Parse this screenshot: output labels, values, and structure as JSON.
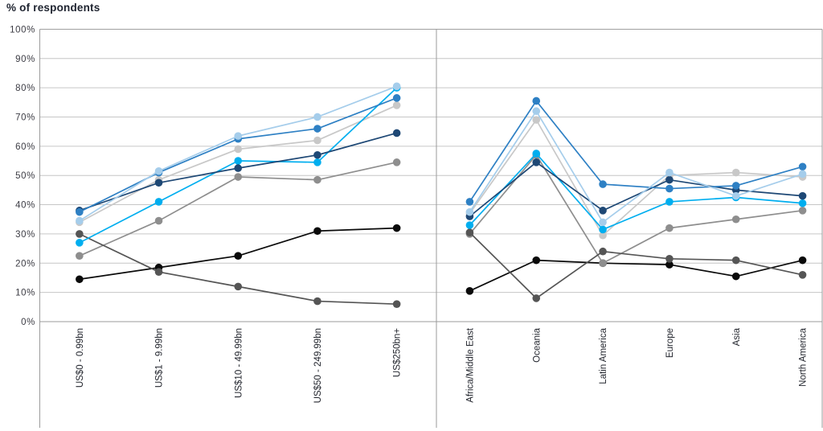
{
  "chart_data": {
    "type": "line",
    "title": "% of respondents",
    "ylabel": "% of respondents",
    "ylim": [
      0,
      100
    ],
    "ytick_step": 10,
    "yticks": [
      "0%",
      "10%",
      "20%",
      "30%",
      "40%",
      "50%",
      "60%",
      "70%",
      "80%",
      "90%",
      "100%"
    ],
    "grid": true,
    "legend_position": "none",
    "panels": [
      {
        "name": "by-fund-size",
        "categories": [
          "US$0 - 0.99bn",
          "US$1 - 9.99bn",
          "US$10 - 49.99bn",
          "US$50 - 249.99bn",
          "US$250bn+"
        ],
        "series": [
          {
            "name": "black",
            "color": "#0a0a0a",
            "values": [
              14.5,
              18.5,
              22.5,
              31,
              32
            ]
          },
          {
            "name": "medium-gray",
            "color": "#8e8e8e",
            "values": [
              22.5,
              34.5,
              49.5,
              48.5,
              54.5
            ]
          },
          {
            "name": "dark-gray",
            "color": "#555555",
            "values": [
              30,
              17,
              12,
              7,
              6
            ]
          },
          {
            "name": "light-gray",
            "color": "#c8c8c8",
            "values": [
              34,
              48.5,
              59,
              62,
              74
            ]
          },
          {
            "name": "cyan",
            "color": "#00aeef",
            "values": [
              27,
              41,
              55,
              54.5,
              80
            ]
          },
          {
            "name": "dark-navy",
            "color": "#1e4875",
            "values": [
              38,
              47.5,
              52.5,
              57,
              64.5
            ]
          },
          {
            "name": "bright-blue",
            "color": "#2e80c4",
            "values": [
              37.5,
              51,
              62.5,
              66,
              76.5
            ]
          },
          {
            "name": "pale-blue",
            "color": "#a5cdeb",
            "values": [
              34.5,
              51.5,
              63.5,
              70,
              80.5
            ]
          }
        ]
      },
      {
        "name": "by-region",
        "categories": [
          "Africa/Middle East",
          "Oceania",
          "Latin America",
          "Europe",
          "Asia",
          "North America"
        ],
        "series": [
          {
            "name": "black",
            "color": "#0a0a0a",
            "values": [
              10.5,
              21,
              20,
              19.5,
              15.5,
              21
            ]
          },
          {
            "name": "medium-gray",
            "color": "#8e8e8e",
            "values": [
              30,
              57,
              20,
              32,
              35,
              38
            ]
          },
          {
            "name": "dark-gray",
            "color": "#555555",
            "values": [
              30.5,
              8,
              24,
              21.5,
              21,
              16
            ]
          },
          {
            "name": "light-gray",
            "color": "#c8c8c8",
            "values": [
              37,
              69,
              29.5,
              50,
              51,
              49.5
            ]
          },
          {
            "name": "cyan",
            "color": "#00aeef",
            "values": [
              33,
              57.5,
              31.5,
              41,
              42.5,
              40.5
            ]
          },
          {
            "name": "dark-navy",
            "color": "#1e4875",
            "values": [
              36,
              54.5,
              38,
              48.5,
              45,
              43
            ]
          },
          {
            "name": "bright-blue",
            "color": "#2e80c4",
            "values": [
              41,
              75.5,
              47,
              45.5,
              46.5,
              53
            ]
          },
          {
            "name": "pale-blue",
            "color": "#a5cdeb",
            "values": [
              37.5,
              72,
              34,
              51,
              43,
              50.5
            ]
          }
        ]
      }
    ],
    "style": {
      "gridline_color": "#c6c6c6",
      "border_color": "#9b9b9b",
      "marker_radius": 4.8,
      "line_width": 1.7
    }
  }
}
